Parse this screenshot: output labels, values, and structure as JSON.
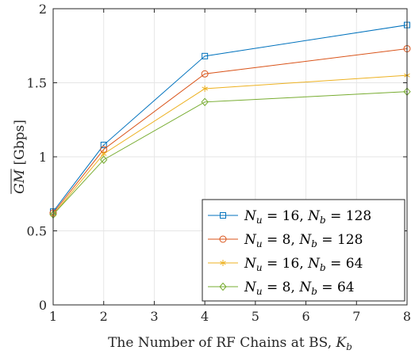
{
  "chart_data": {
    "type": "line",
    "xlabel": "The Number of RF Chains at BS, K_b",
    "xlabel_parts": {
      "text": "The Number of RF Chains at BS, ",
      "var": "K",
      "sub": "b"
    },
    "ylabel": "GM [Gbps]",
    "ylabel_parts": {
      "var": "GM",
      "overline": true,
      "unit": "[Gbps]"
    },
    "x": [
      1,
      2,
      4,
      8
    ],
    "xlim": [
      1,
      8
    ],
    "ylim": [
      0,
      2
    ],
    "xticks": [
      "1",
      "2",
      "3",
      "4",
      "5",
      "6",
      "7",
      "8"
    ],
    "yticks": [
      "0",
      "0.5",
      "1",
      "1.5",
      "2"
    ],
    "grid": true,
    "legend_position": "bottom-right",
    "series": [
      {
        "name": "N_u = 16, N_b = 128",
        "label_parts": {
          "nu": "16",
          "nb": "128"
        },
        "marker": "square",
        "color": "#0072BD",
        "values": [
          0.63,
          1.08,
          1.68,
          1.89
        ]
      },
      {
        "name": "N_u = 8, N_b = 128",
        "label_parts": {
          "nu": "8",
          "nb": "128"
        },
        "marker": "circle",
        "color": "#D95319",
        "values": [
          0.62,
          1.05,
          1.56,
          1.73
        ]
      },
      {
        "name": "N_u = 16, N_b = 64",
        "label_parts": {
          "nu": "16",
          "nb": "64"
        },
        "marker": "asterisk",
        "color": "#EDB120",
        "values": [
          0.61,
          1.02,
          1.46,
          1.55
        ]
      },
      {
        "name": "N_u = 8, N_b = 64",
        "label_parts": {
          "nu": "8",
          "nb": "64"
        },
        "marker": "diamond",
        "color": "#77AC30",
        "values": [
          0.61,
          0.98,
          1.37,
          1.44
        ]
      }
    ]
  }
}
